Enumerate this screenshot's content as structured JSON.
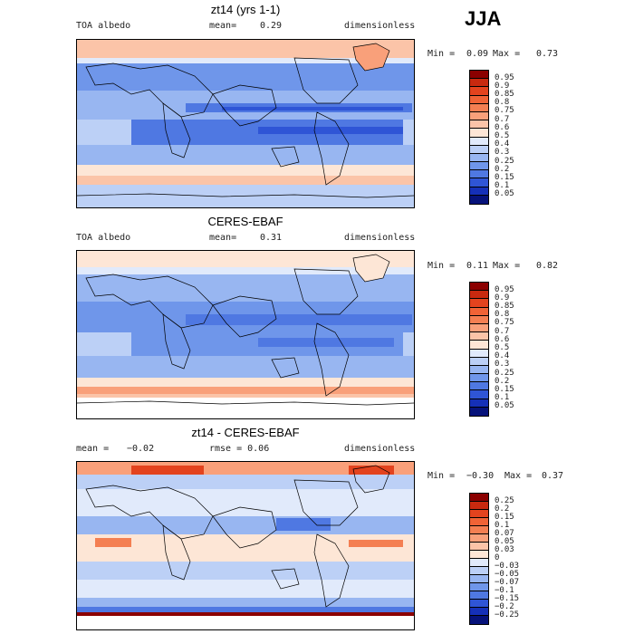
{
  "season": "JJA",
  "panels": [
    {
      "title": "zt14 (yrs 1-1)",
      "left_label": "TOA albedo",
      "mean_label": "mean=",
      "mean_value": "0.29",
      "units": "dimensionless",
      "min_label": "Min =",
      "min_value": "0.09",
      "max_label": "Max =",
      "max_value": "0.73",
      "type": "field",
      "colorbar": {
        "labels": [
          "0.95",
          "0.9",
          "0.85",
          "0.8",
          "0.75",
          "0.7",
          "0.6",
          "0.5",
          "0.4",
          "0.3",
          "0.25",
          "0.2",
          "0.15",
          "0.1",
          "0.05"
        ],
        "colors": [
          "#8b0000",
          "#c8290f",
          "#e3431e",
          "#f06336",
          "#f47f52",
          "#f9a07a",
          "#fbc4a8",
          "#fde6d6",
          "#e1eafb",
          "#bcd0f6",
          "#98b6f1",
          "#6f96ea",
          "#4f78e2",
          "#2f55d6",
          "#1530b8",
          "#06127a"
        ]
      }
    },
    {
      "title": "CERES-EBAF",
      "left_label": "TOA albedo",
      "mean_label": "mean=",
      "mean_value": "0.31",
      "units": "dimensionless",
      "min_label": "Min =",
      "min_value": "0.11",
      "max_label": "Max =",
      "max_value": "0.82",
      "type": "field",
      "colorbar": {
        "labels": [
          "0.95",
          "0.9",
          "0.85",
          "0.8",
          "0.75",
          "0.7",
          "0.6",
          "0.5",
          "0.4",
          "0.3",
          "0.25",
          "0.2",
          "0.15",
          "0.1",
          "0.05"
        ],
        "colors": [
          "#8b0000",
          "#c8290f",
          "#e3431e",
          "#f06336",
          "#f47f52",
          "#f9a07a",
          "#fbc4a8",
          "#fde6d6",
          "#e1eafb",
          "#bcd0f6",
          "#98b6f1",
          "#6f96ea",
          "#4f78e2",
          "#2f55d6",
          "#1530b8",
          "#06127a"
        ]
      }
    },
    {
      "title": "zt14 - CERES-EBAF",
      "left_label": "mean =",
      "mean_label": "−0.02",
      "mean_value": "rmse =   0.06",
      "units": "dimensionless",
      "min_label": "Min =",
      "min_value": "−0.30",
      "max_label": "Max =",
      "max_value": "0.37",
      "type": "diff",
      "colorbar": {
        "labels": [
          "0.25",
          "0.2",
          "0.15",
          "0.1",
          "0.07",
          "0.05",
          "0.03",
          "0",
          "−0.03",
          "−0.05",
          "−0.07",
          "−0.1",
          "−0.15",
          "−0.2",
          "−0.25"
        ],
        "colors": [
          "#8b0000",
          "#c8290f",
          "#e3431e",
          "#f06336",
          "#f47f52",
          "#f9a07a",
          "#fbc4a8",
          "#fde6d6",
          "#e1eafb",
          "#bcd0f6",
          "#98b6f1",
          "#6f96ea",
          "#4f78e2",
          "#2f55d6",
          "#1530b8",
          "#06127a"
        ]
      }
    }
  ]
}
